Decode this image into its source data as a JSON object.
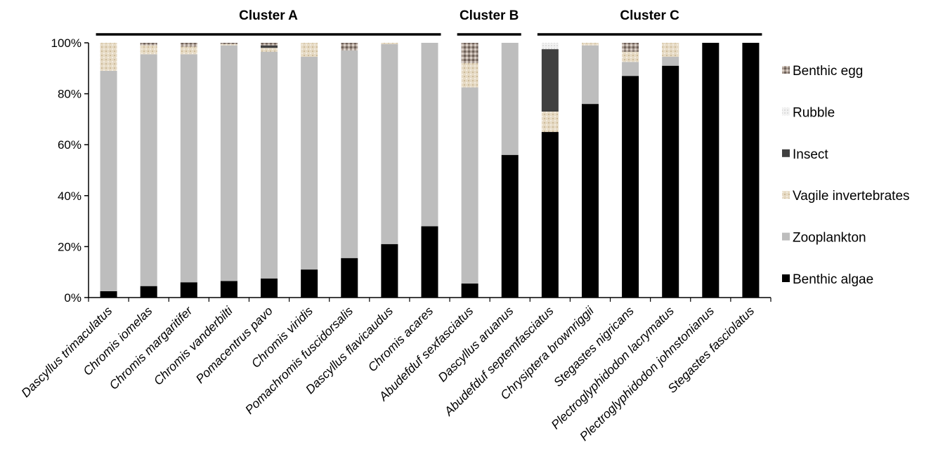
{
  "chart_data": {
    "type": "bar",
    "stacked": true,
    "ylim": [
      0,
      100
    ],
    "yticks": [
      "0%",
      "20%",
      "40%",
      "60%",
      "80%",
      "100%"
    ],
    "grid": false,
    "legend_position": "right",
    "categories": [
      "Dascyllus trimaculatus",
      "Chromis iomelas",
      "Chromis margaritifer",
      "Chromis vanderbilti",
      "Pomacentrus pavo",
      "Chromis viridis",
      "Pomachromis fuscidorsalis",
      "Dascyllus flavicaudus",
      "Chromis acares",
      "Abudefduf sexfasciatus",
      "Dascyllus aruanus",
      "Abudefduf septemfasciatus",
      "Chrysiptera brownriggii",
      "Stegastes nigricans",
      "Plectroglyphidodon lacrymatus",
      "Plectroglyphidodon johnstonianus",
      "Stegastes fasciolatus"
    ],
    "series": [
      {
        "name": "Benthic algae",
        "color": "#000000",
        "values": [
          2.5,
          4.5,
          6,
          6.5,
          7.5,
          11,
          15.5,
          21,
          28,
          5.5,
          56,
          65,
          76,
          87,
          91,
          100,
          100
        ]
      },
      {
        "name": "Zooplankton",
        "color": "#bdbdbd",
        "values": [
          86.5,
          91,
          89.5,
          92.5,
          89,
          83.5,
          81.5,
          78.5,
          72,
          77,
          44,
          0,
          23,
          5.5,
          3.5,
          0,
          0
        ]
      },
      {
        "name": "Vagile invertebrates",
        "color": "#e3d6bf",
        "values": [
          11,
          3.5,
          3,
          0.5,
          1.5,
          5.5,
          0,
          0.5,
          0,
          9.5,
          0,
          8,
          1,
          4,
          5.5,
          0,
          0
        ]
      },
      {
        "name": "Insect",
        "color": "#404040",
        "values": [
          0,
          0,
          0,
          0,
          1,
          0,
          0,
          0,
          0,
          0,
          0,
          24.5,
          0,
          0,
          0,
          0,
          0
        ]
      },
      {
        "name": "Rubble",
        "color": "#ececec",
        "values": [
          0,
          0,
          0,
          0,
          0,
          0,
          0,
          0,
          0,
          0,
          0,
          2.5,
          0,
          0,
          0,
          0,
          0
        ]
      },
      {
        "name": "Benthic egg",
        "color": "#9e8f86",
        "values": [
          0,
          1,
          1.5,
          0.5,
          1,
          0,
          3,
          0,
          0,
          8,
          0,
          0,
          0,
          3.5,
          0,
          0,
          0
        ]
      }
    ],
    "legend_order": [
      "Benthic egg",
      "Rubble",
      "Insect",
      "Vagile invertebrates",
      "Zooplankton",
      "Benthic algae"
    ],
    "clusters": [
      {
        "label": "Cluster A",
        "start": 0,
        "end": 8
      },
      {
        "label": "Cluster B",
        "start": 9,
        "end": 10
      },
      {
        "label": "Cluster C",
        "start": 11,
        "end": 16
      }
    ]
  }
}
